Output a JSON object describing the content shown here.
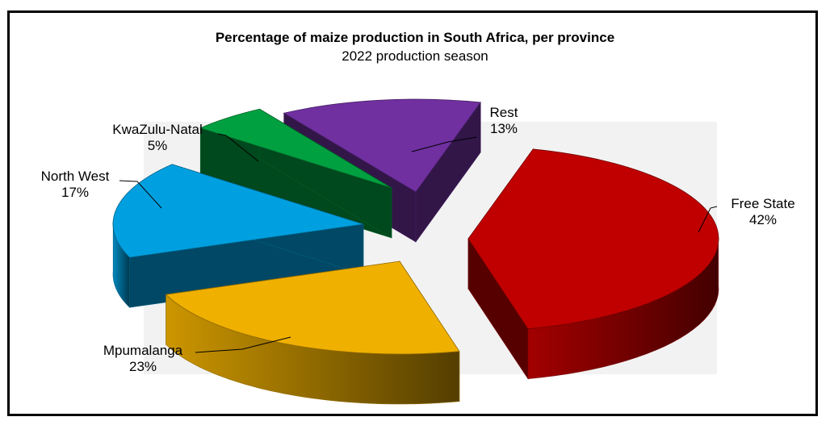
{
  "chart_data": {
    "type": "pie",
    "title": "Percentage of maize production in South Africa, per province",
    "subtitle": "2022 production season",
    "slices": [
      {
        "label": "Free State",
        "value": 42,
        "value_label": "42%",
        "color": "#c00000"
      },
      {
        "label": "Mpumalanga",
        "value": 23,
        "value_label": "23%",
        "color": "#f0b000"
      },
      {
        "label": "North West",
        "value": 17,
        "value_label": "17%",
        "color": "#00a0e0"
      },
      {
        "label": "KwaZulu-Natal",
        "value": 5,
        "value_label": "5%",
        "color": "#00a040"
      },
      {
        "label": "Rest",
        "value": 13,
        "value_label": "13%",
        "color": "#7030a0"
      }
    ],
    "style": "3d-exploded"
  }
}
